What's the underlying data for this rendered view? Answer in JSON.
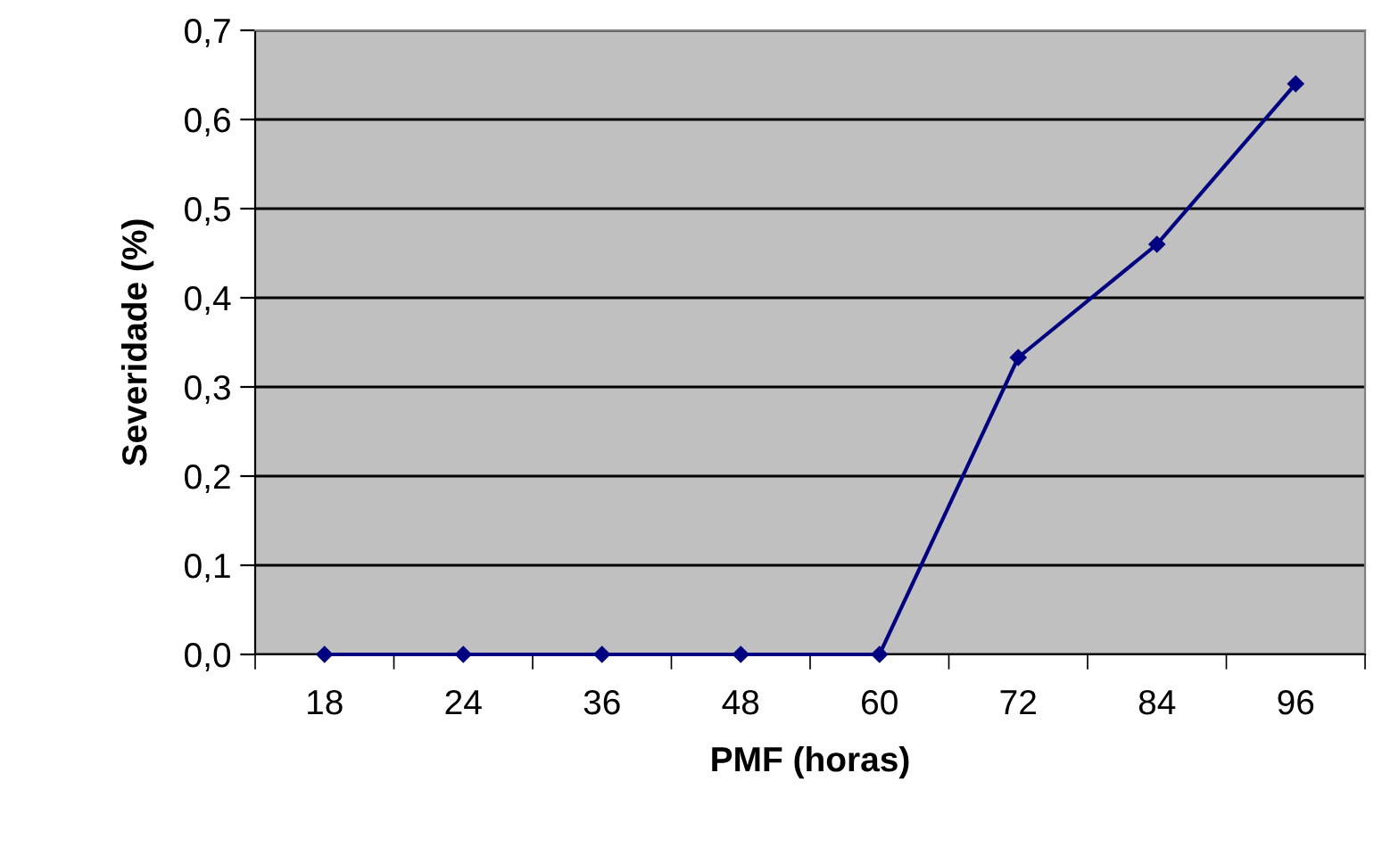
{
  "chart_data": {
    "type": "line",
    "xlabel": "PMF (horas)",
    "ylabel": "Severidade (%)",
    "categories": [
      "18",
      "24",
      "36",
      "48",
      "60",
      "72",
      "84",
      "96"
    ],
    "series": [
      {
        "color": "#000080",
        "values": [
          0,
          0,
          0,
          0,
          0,
          0.333,
          0.46,
          0.64
        ]
      }
    ],
    "ylim": [
      0,
      0.7
    ],
    "yticks": [
      {
        "value": 0,
        "label": "0,0"
      },
      {
        "value": 0.1,
        "label": "0,1"
      },
      {
        "value": 0.2,
        "label": "0,2"
      },
      {
        "value": 0.3,
        "label": "0,3"
      },
      {
        "value": 0.4,
        "label": "0,4"
      },
      {
        "value": 0.5,
        "label": "0,5"
      },
      {
        "value": 0.6,
        "label": "0,6"
      },
      {
        "value": 0.7,
        "label": "0,7"
      }
    ],
    "grid": "y",
    "marker": "diamond",
    "line_style": "solid",
    "legend": false
  }
}
